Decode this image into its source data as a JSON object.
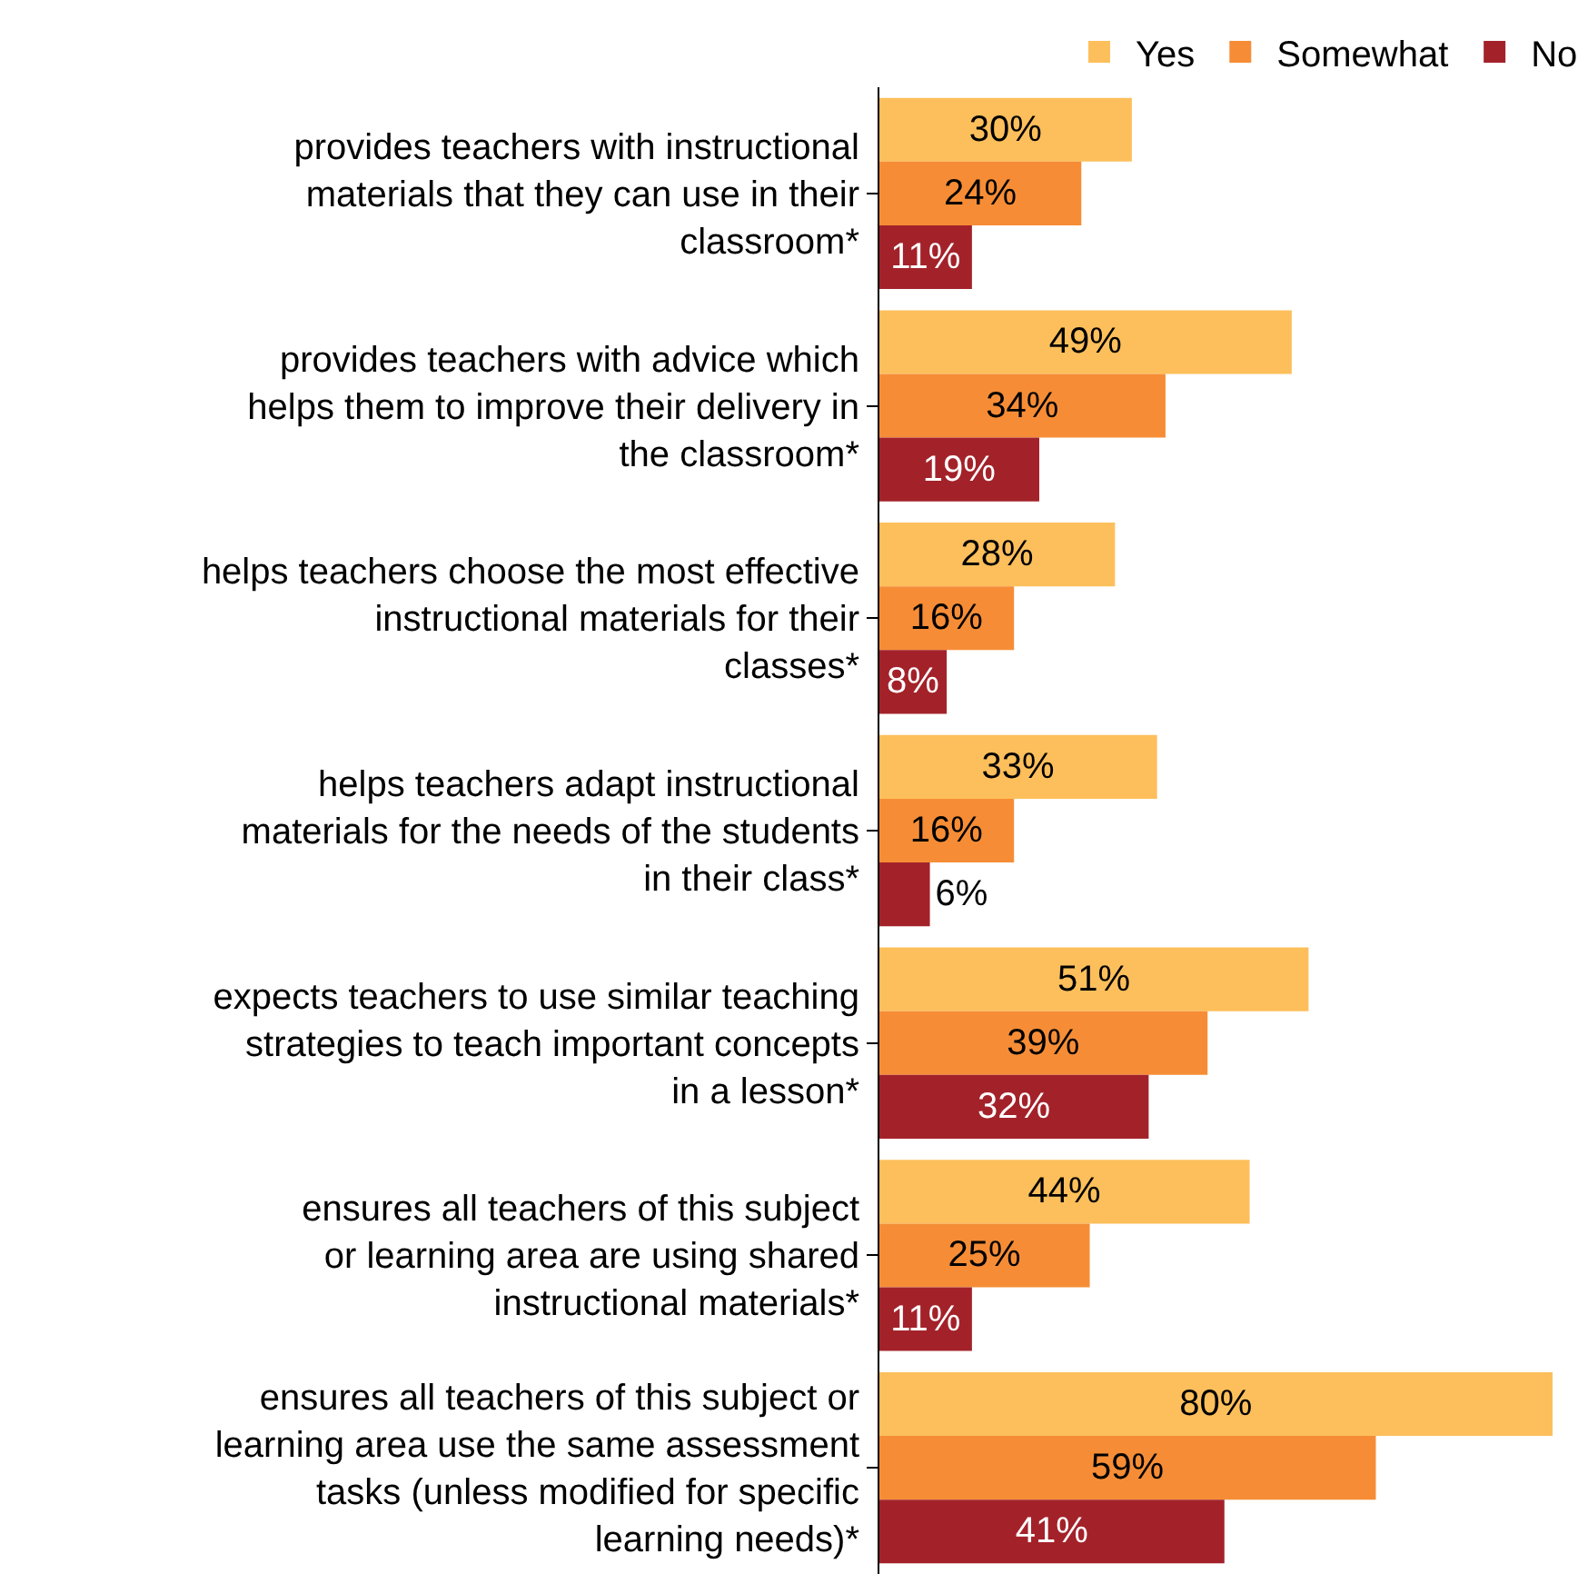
{
  "chart_data": {
    "type": "bar",
    "orientation": "horizontal",
    "legend": "top right",
    "tick_labels": "y",
    "categories": [
      "provides teachers with instructional\nmaterials that they can use in their\nclassroom*",
      "provides teachers with advice which\nhelps them to improve their delivery in\nthe classroom*",
      "helps teachers choose the most effective\ninstructional materials for their\nclasses*",
      "helps teachers adapt instructional\nmaterials for the needs of the students\nin their class*",
      "expects teachers to use similar teaching\nstrategies to teach important concepts\nin a lesson*",
      "ensures all teachers of this subject\nor learning area are using shared\ninstructional materials*",
      "ensures all teachers of this subject or\nlearning area use the same assessment\ntasks (unless modified for specific\nlearning needs)*"
    ],
    "series": [
      {
        "name": "Yes",
        "color": "#fdbf5b",
        "values": [
          30,
          49,
          28,
          33,
          51,
          44,
          80
        ],
        "value_labels": [
          "30%",
          "49%",
          "28%",
          "33%",
          "51%",
          "44%",
          "80%"
        ]
      },
      {
        "name": "Somewhat",
        "color": "#f68d36",
        "values": [
          24,
          34,
          16,
          16,
          39,
          25,
          59
        ],
        "value_labels": [
          "24%",
          "34%",
          "16%",
          "16%",
          "39%",
          "25%",
          "59%"
        ]
      },
      {
        "name": "No",
        "color": "#a3222a",
        "values": [
          11,
          19,
          8,
          6,
          32,
          11,
          41
        ],
        "value_labels": [
          "11%",
          "19%",
          "8%",
          "6%",
          "32%",
          "11%",
          "41%"
        ]
      }
    ]
  }
}
